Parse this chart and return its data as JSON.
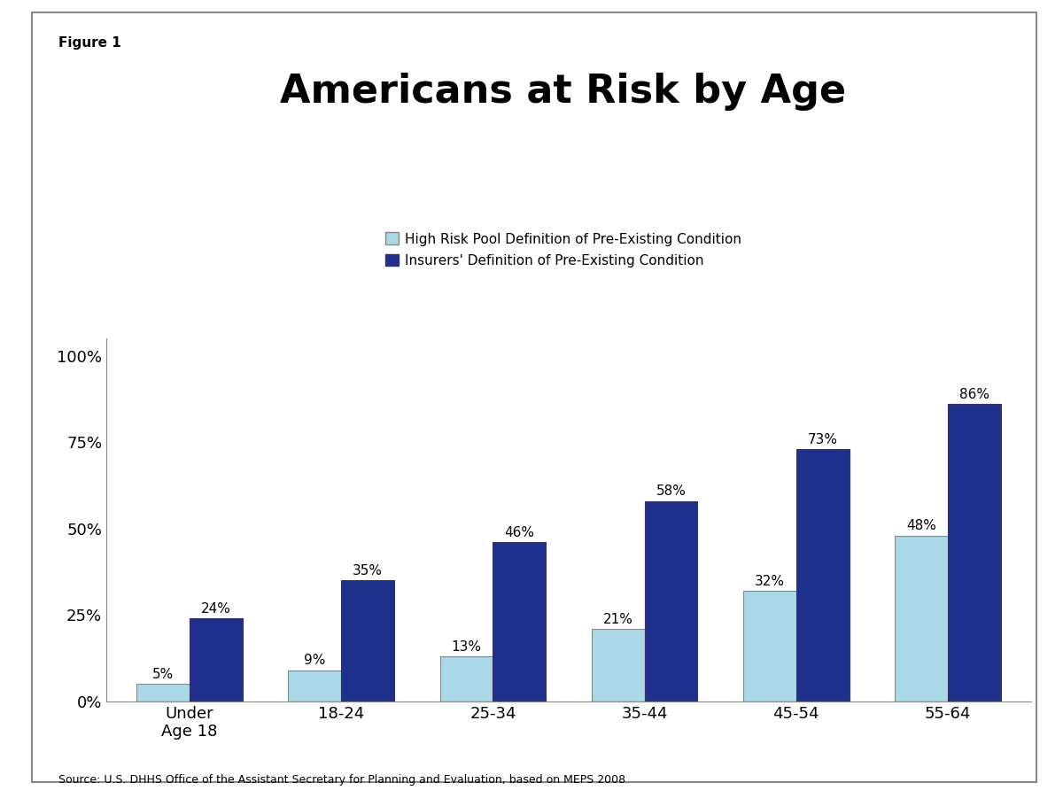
{
  "title": "Americans at Risk by Age",
  "figure_label": "Figure 1",
  "categories": [
    "Under\nAge 18",
    "18-24",
    "25-34",
    "35-44",
    "45-54",
    "55-64"
  ],
  "high_risk_values": [
    5,
    9,
    13,
    21,
    32,
    48
  ],
  "insurer_values": [
    24,
    35,
    46,
    58,
    73,
    86
  ],
  "high_risk_color": "#aad8e6",
  "insurer_color": "#1f2f8c",
  "legend_labels": [
    "High Risk Pool Definition of Pre-Existing Condition",
    "Insurers' Definition of Pre-Existing Condition"
  ],
  "yticks": [
    0,
    25,
    50,
    75,
    100
  ],
  "ytick_labels": [
    "0%",
    "25%",
    "50%",
    "75%",
    "100%"
  ],
  "ylim": [
    0,
    105
  ],
  "source_text": "Source: U.S. DHHS Office of the Assistant Secretary for Planning and Evaluation, based on MEPS 2008",
  "bar_width": 0.35,
  "background_color": "#ffffff",
  "border_color": "#888888",
  "title_fontsize": 32,
  "annotation_fontsize": 11,
  "source_fontsize": 9,
  "figure_label_fontsize": 11,
  "legend_fontsize": 11,
  "tick_fontsize": 13
}
